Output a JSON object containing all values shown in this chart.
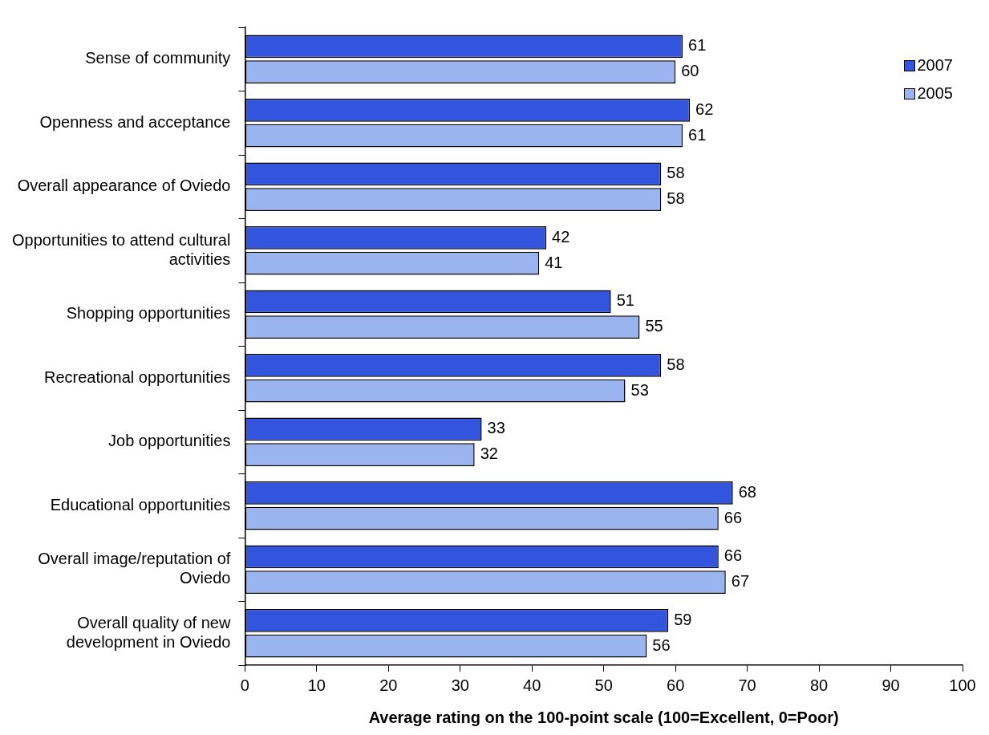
{
  "chart_data": {
    "type": "bar",
    "orientation": "horizontal",
    "xlabel": "Average rating on the 100-point scale (100=Excellent, 0=Poor)",
    "categories": [
      "Sense of community",
      "Openness and acceptance",
      "Overall appearance of Oviedo",
      "Opportunities to attend cultural activities",
      "Shopping opportunities",
      "Recreational opportunities",
      "Job opportunities",
      "Educational opportunities",
      "Overall image/reputation of Oviedo",
      "Overall quality of new development in Oviedo"
    ],
    "series": [
      {
        "name": "2007",
        "color": "#3355dd",
        "values": [
          61,
          62,
          58,
          42,
          51,
          58,
          33,
          68,
          66,
          59
        ]
      },
      {
        "name": "2005",
        "color": "#99b4ee",
        "values": [
          60,
          61,
          58,
          41,
          55,
          53,
          32,
          66,
          67,
          56
        ]
      }
    ],
    "xlim": [
      0,
      100
    ],
    "xticks": [
      0,
      10,
      20,
      30,
      40,
      50,
      60,
      70,
      80,
      90,
      100
    ],
    "grid": false,
    "legend": "top right",
    "data_labels": true
  }
}
